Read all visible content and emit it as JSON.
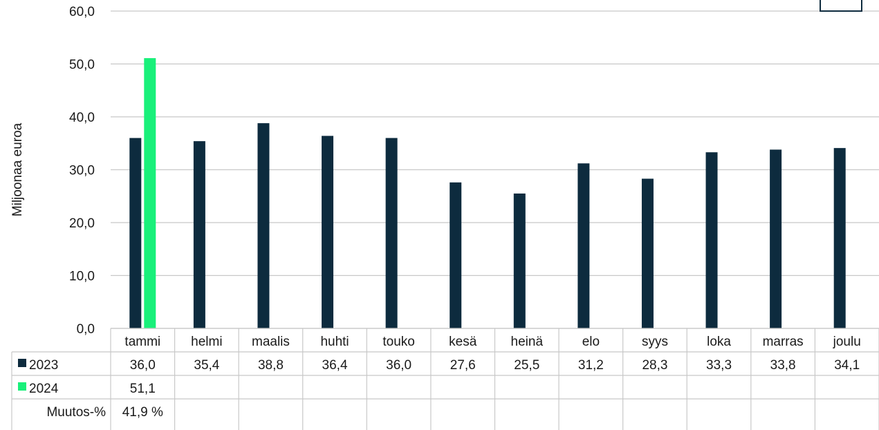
{
  "chart_data": {
    "type": "bar",
    "ylabel": "Miljoonaa euroa",
    "ylim": [
      0,
      60
    ],
    "yticks": [
      "0,0",
      "10,0",
      "20,0",
      "30,0",
      "40,0",
      "50,0",
      "60,0"
    ],
    "yticks_values": [
      0,
      10,
      20,
      30,
      40,
      50,
      60
    ],
    "grid": true,
    "categories": [
      "tammi",
      "helmi",
      "maalis",
      "huhti",
      "touko",
      "kesä",
      "heinä",
      "elo",
      "syys",
      "loka",
      "marras",
      "joulu"
    ],
    "series": [
      {
        "name": "2023",
        "color": "#0d2b3e",
        "values": [
          36.0,
          35.4,
          38.8,
          36.4,
          36.0,
          27.6,
          25.5,
          31.2,
          28.3,
          33.3,
          33.8,
          34.1
        ],
        "labels": [
          "36,0",
          "35,4",
          "38,8",
          "36,4",
          "36,0",
          "27,6",
          "25,5",
          "31,2",
          "28,3",
          "33,3",
          "33,8",
          "34,1"
        ]
      },
      {
        "name": "2024",
        "color": "#19f07a",
        "values": [
          51.1,
          null,
          null,
          null,
          null,
          null,
          null,
          null,
          null,
          null,
          null,
          null
        ],
        "labels": [
          "51,1",
          "",
          "",
          "",
          "",
          "",
          "",
          "",
          "",
          "",
          "",
          ""
        ]
      }
    ],
    "extra_rows": [
      {
        "name": "Muutos-%",
        "labels": [
          "41,9 %",
          "",
          "",
          "",
          "",
          "",
          "",
          "",
          "",
          "",
          "",
          ""
        ]
      }
    ],
    "legend": "data-table"
  }
}
